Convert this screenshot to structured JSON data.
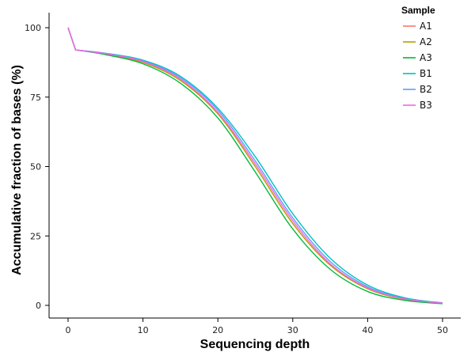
{
  "chart_data": {
    "type": "line",
    "xlabel": "Sequencing depth",
    "ylabel": "Accumulative fraction of bases (%)",
    "xlim": [
      0,
      50
    ],
    "ylim": [
      0,
      100
    ],
    "xticks": [
      0,
      10,
      20,
      30,
      40,
      50
    ],
    "yticks": [
      0,
      25,
      50,
      75,
      100
    ],
    "grid": false,
    "legend": {
      "title": "Sample",
      "placement": "top-right"
    },
    "x": [
      0,
      1,
      5,
      10,
      15,
      20,
      25,
      30,
      35,
      40,
      45,
      50
    ],
    "series": [
      {
        "name": "A1",
        "color": "#F8766D",
        "values": [
          100,
          92,
          90.5,
          87.5,
          81.0,
          69.0,
          50.0,
          29.5,
          14.5,
          6.0,
          2.2,
          0.8
        ]
      },
      {
        "name": "A2",
        "color": "#B79F00",
        "values": [
          100,
          92,
          90.5,
          87.5,
          81.0,
          69.0,
          50.0,
          29.5,
          14.5,
          6.0,
          2.2,
          0.8
        ]
      },
      {
        "name": "A3",
        "color": "#00BA38",
        "values": [
          100,
          92,
          90.3,
          87.0,
          80.0,
          67.5,
          48.0,
          27.5,
          13.0,
          5.0,
          1.8,
          0.6
        ]
      },
      {
        "name": "B1",
        "color": "#00BFC4",
        "values": [
          100,
          92,
          90.8,
          88.3,
          82.5,
          71.0,
          53.5,
          33.0,
          17.0,
          7.3,
          2.7,
          0.9
        ]
      },
      {
        "name": "B2",
        "color": "#619CFF",
        "values": [
          100,
          92,
          90.7,
          88.0,
          82.0,
          70.3,
          52.0,
          31.5,
          15.8,
          6.7,
          2.4,
          0.8
        ]
      },
      {
        "name": "B3",
        "color": "#F564E3",
        "values": [
          100,
          92,
          90.6,
          87.8,
          81.5,
          69.5,
          51.0,
          30.5,
          15.0,
          6.3,
          2.3,
          0.8
        ]
      }
    ]
  }
}
